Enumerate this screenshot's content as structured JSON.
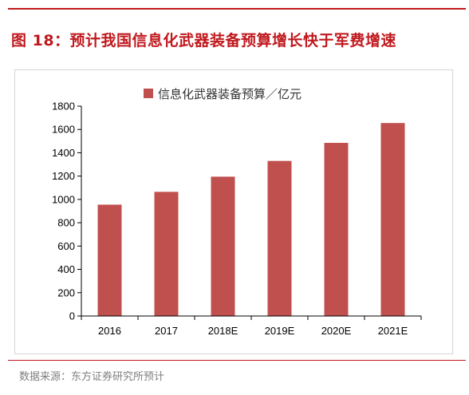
{
  "figure": {
    "title": "图 18：预计我国信息化武器装备预算增长快于军费增速",
    "source": "数据来源：东方证券研究所预计"
  },
  "colors": {
    "accent": "#c0191e",
    "bar": "#c0504d"
  },
  "chart_data": {
    "type": "bar",
    "categories": [
      "2016",
      "2017",
      "2018E",
      "2019E",
      "2020E",
      "2021E"
    ],
    "series": [
      {
        "name": "信息化武器装备预算／亿元",
        "values": [
          955,
          1065,
          1195,
          1330,
          1485,
          1655
        ]
      }
    ],
    "ylim": [
      0,
      1800
    ],
    "yticks": [
      0,
      200,
      400,
      600,
      800,
      1000,
      1200,
      1400,
      1600,
      1800
    ],
    "grid": false,
    "legend": "top-center"
  }
}
